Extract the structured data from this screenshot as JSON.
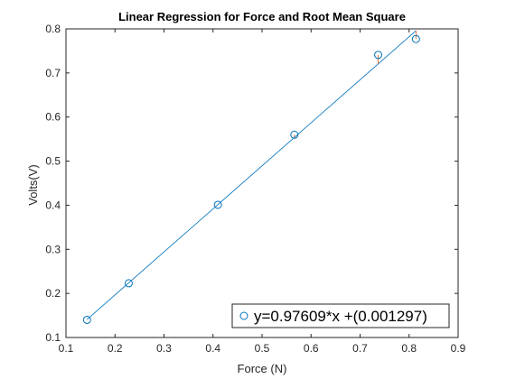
{
  "chart_data": {
    "type": "scatter",
    "title": "Linear Regression for Force and Root Mean Square",
    "xlabel": "Force (N)",
    "ylabel": "Volts(V)",
    "xlim": [
      0.1,
      0.9
    ],
    "ylim": [
      0.1,
      0.8
    ],
    "xticks": [
      "0.1",
      "0.2",
      "0.3",
      "0.4",
      "0.5",
      "0.6",
      "0.7",
      "0.8",
      "0.9"
    ],
    "yticks": [
      "0.1",
      "0.2",
      "0.3",
      "0.4",
      "0.5",
      "0.6",
      "0.7",
      "0.8"
    ],
    "grid": false,
    "legend_position": "bottom-right",
    "series": [
      {
        "name": "y=0.97609*x +(0.001297)",
        "marker": "circle",
        "color": "#0072BD",
        "points": [
          {
            "x": 0.143,
            "y": 0.14
          },
          {
            "x": 0.228,
            "y": 0.223
          },
          {
            "x": 0.41,
            "y": 0.401
          },
          {
            "x": 0.566,
            "y": 0.56
          },
          {
            "x": 0.737,
            "y": 0.741
          },
          {
            "x": 0.814,
            "y": 0.777
          }
        ]
      }
    ],
    "fit_line": {
      "slope": 0.97609,
      "intercept": 0.001297,
      "x_range": [
        0.143,
        0.814
      ],
      "color": "#0072BD"
    },
    "residual_color": "#D95319"
  }
}
